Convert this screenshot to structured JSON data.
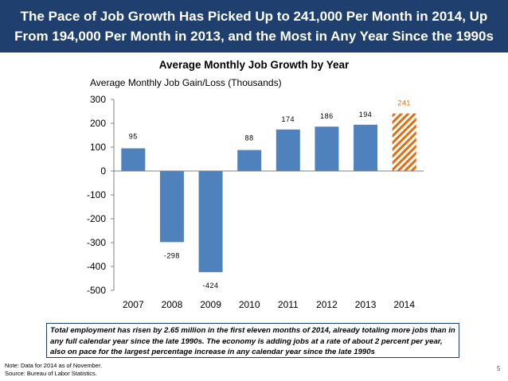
{
  "header": {
    "title": "The Pace of Job Growth Has Picked Up to 241,000 Per Month in 2014, Up From 194,000 Per Month in 2013, and the Most in Any Year Since the 1990s"
  },
  "chart_data": {
    "type": "bar",
    "title": "Average Monthly Job Growth by Year",
    "ylabel": "Average Monthly Job Gain/Loss (Thousands)",
    "xlabel": "",
    "categories": [
      "2007",
      "2008",
      "2009",
      "2010",
      "2011",
      "2012",
      "2013",
      "2014"
    ],
    "values": [
      95,
      -298,
      -424,
      88,
      174,
      186,
      194,
      241
    ],
    "data_labels": [
      "95",
      "-298",
      "-424",
      "88",
      "174",
      "186",
      "194",
      "241"
    ],
    "ylim": [
      -500,
      300
    ],
    "yticks": [
      300,
      200,
      100,
      0,
      -100,
      -200,
      -300,
      -400,
      -500
    ],
    "ytick_labels": [
      "300",
      "200",
      "100",
      "0",
      "-100",
      "-200",
      "-300",
      "-400",
      "-500"
    ],
    "grid": false,
    "bar_color": "#4f81bd",
    "highlight_color": "#e46c0a",
    "highlight_category": "2014"
  },
  "callout": {
    "text": "Total employment has risen by 2.65 million in the first eleven months of 2014, already totaling more jobs than in any full calendar year since the late 1990s. The economy is adding jobs at a rate of about 2 percent per year, also on pace for the largest percentage increase in any calendar year since the late 1990s"
  },
  "notes": {
    "line1": "Note: Data for 2014 as of November.",
    "line2": "Source: Bureau of Labor Statistics."
  },
  "page_number": "5"
}
